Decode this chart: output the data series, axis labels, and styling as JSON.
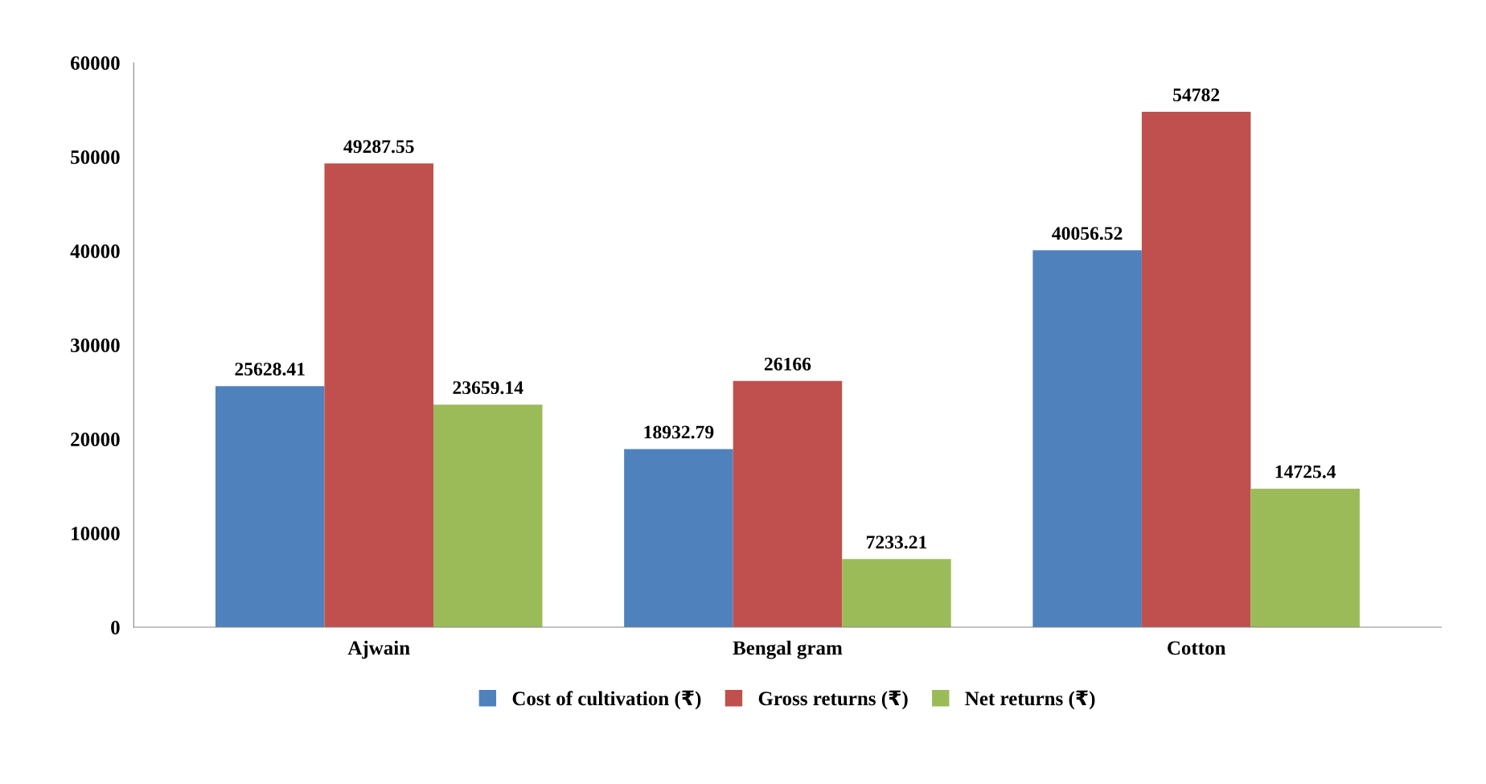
{
  "chart_data": {
    "type": "bar",
    "categories": [
      "Ajwain",
      "Bengal gram",
      "Cotton"
    ],
    "series": [
      {
        "name": "Cost of cultivation (₹)",
        "color": "#4f81bd",
        "values": [
          25628.41,
          18932.79,
          40056.52
        ],
        "value_labels": [
          "25628.41",
          "18932.79",
          "40056.52"
        ]
      },
      {
        "name": "Gross returns (₹)",
        "color": "#c0504d",
        "values": [
          49287.55,
          26166,
          54782
        ],
        "value_labels": [
          "49287.55",
          "26166",
          "54782"
        ]
      },
      {
        "name": "Net returns (₹)",
        "color": "#9bbb59",
        "values": [
          23659.14,
          7233.21,
          14725.4
        ],
        "value_labels": [
          "23659.14",
          "7233.21",
          "14725.4"
        ]
      }
    ],
    "ylim": [
      0,
      60000
    ],
    "yticks": [
      0,
      10000,
      20000,
      30000,
      40000,
      50000,
      60000
    ],
    "grid": false,
    "legend": "bottom"
  }
}
